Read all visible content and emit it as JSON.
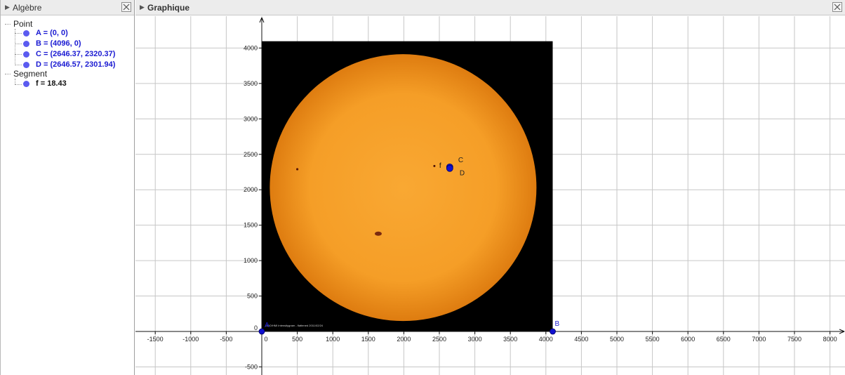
{
  "algebra": {
    "title": "Algèbre",
    "groups": [
      {
        "label": "Point",
        "items": [
          {
            "text": "A = (0, 0)"
          },
          {
            "text": "B = (4096, 0)"
          },
          {
            "text": "C = (2646.37, 2320.37)"
          },
          {
            "text": "D = (2646.57, 2301.94)"
          }
        ]
      },
      {
        "label": "Segment",
        "items": [
          {
            "text": "f = 18.43"
          }
        ]
      }
    ]
  },
  "graphics": {
    "title": "Graphique",
    "x_ticks": [
      "-1500",
      "-1000",
      "-500",
      "0",
      "500",
      "1000",
      "1500",
      "2000",
      "2500",
      "3000",
      "3500",
      "4000",
      "4500",
      "5000",
      "5500",
      "6000",
      "6500",
      "7000",
      "7500",
      "8000"
    ],
    "y_ticks": [
      "4000",
      "3500",
      "3000",
      "2500",
      "2000",
      "1500",
      "1000",
      "500",
      "0",
      "-500"
    ],
    "points": [
      {
        "label": "A",
        "x": 0,
        "y": 0
      },
      {
        "label": "B",
        "x": 4096,
        "y": 0
      },
      {
        "label": "C",
        "x": 2646.37,
        "y": 2320.37
      },
      {
        "label": "D",
        "x": 2646.57,
        "y": 2301.94
      }
    ],
    "segment_label": "f",
    "image_caption": "SDO/HMI Intensitygram - flattened 2011/02/24",
    "colors": {
      "sun_outer": "#e98a12",
      "sun_inner": "#f8a630",
      "point": "#1010d0",
      "axis": "#111111"
    }
  }
}
